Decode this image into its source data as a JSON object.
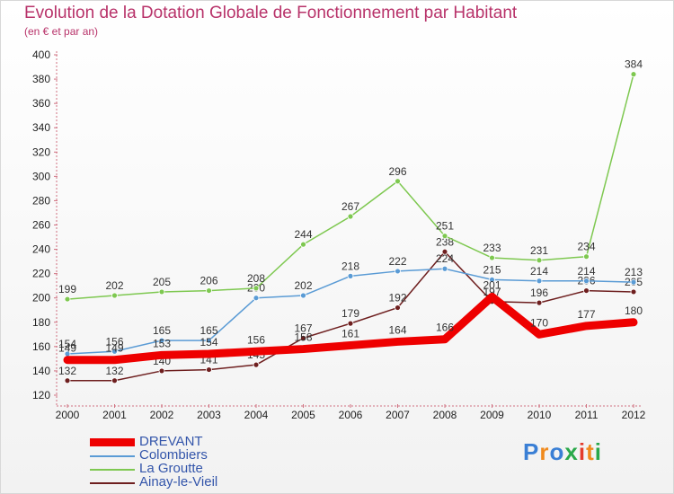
{
  "title": "Evolution de la Dotation Globale de Fonctionnement par Habitant",
  "subtitle": "(en € et par an)",
  "logo": {
    "text": "Proxiti",
    "colors": [
      "#3a7fd5",
      "#f08a1d",
      "#3a7fd5",
      "#2aa84a",
      "#e43c2c",
      "#f08a1d",
      "#2aa84a"
    ]
  },
  "chart_data": {
    "type": "line",
    "title": "Evolution de la Dotation Globale de Fonctionnement par Habitant",
    "subtitle": "(en € et par an)",
    "xlabel": "",
    "ylabel": "",
    "categories": [
      "2000",
      "2001",
      "2002",
      "2003",
      "2004",
      "2005",
      "2006",
      "2007",
      "2008",
      "2009",
      "2010",
      "2011",
      "2012"
    ],
    "yticks": [
      120,
      140,
      160,
      180,
      200,
      220,
      240,
      260,
      280,
      300,
      320,
      340,
      360,
      380,
      400
    ],
    "ylim": [
      120,
      400
    ],
    "grid": false,
    "legend_position": "bottom-left",
    "series": [
      {
        "name": "Ainay-le-Vieil",
        "color": "#6e1f1f",
        "style": "thin",
        "values": [
          132,
          132,
          140,
          141,
          145,
          167,
          179,
          192,
          238,
          197,
          196,
          206,
          205
        ],
        "labels": [
          "132",
          "132",
          "140",
          "141",
          "145",
          "167",
          "179",
          "192",
          "238",
          "197",
          "196",
          "206",
          "205"
        ]
      },
      {
        "name": "Colombiers",
        "color": "#5a9bd5",
        "style": "thin",
        "values": [
          154,
          156,
          165,
          165,
          200,
          202,
          218,
          222,
          224,
          215,
          214,
          214,
          213
        ],
        "labels": [
          "154",
          "156",
          "165",
          "165",
          "200",
          "202",
          "218",
          "222",
          "224",
          "215",
          "214",
          "214",
          "213"
        ]
      },
      {
        "name": "La Groutte",
        "color": "#7ec850",
        "style": "thin",
        "values": [
          199,
          202,
          205,
          206,
          208,
          244,
          267,
          296,
          251,
          233,
          231,
          234,
          384
        ],
        "labels": [
          "199",
          "202",
          "205",
          "206",
          "208",
          "244",
          "267",
          "296",
          "251",
          "233",
          "231",
          "234",
          "384"
        ]
      },
      {
        "name": "DREVANT",
        "color": "#ee0000",
        "style": "thick",
        "values": [
          149,
          149,
          153,
          154,
          156,
          158,
          161,
          164,
          166,
          201,
          170,
          177,
          180
        ],
        "labels": [
          "149",
          "149",
          "153",
          "154",
          "156",
          "158",
          "161",
          "164",
          "166",
          "201",
          "170",
          "177",
          "180"
        ]
      }
    ],
    "legend": [
      {
        "name": "DREVANT",
        "color": "#ee0000",
        "style": "thick"
      },
      {
        "name": "Colombiers",
        "color": "#5a9bd5",
        "style": "thin"
      },
      {
        "name": "La Groutte",
        "color": "#7ec850",
        "style": "thin"
      },
      {
        "name": "Ainay-le-Vieil",
        "color": "#6e1f1f",
        "style": "thin"
      }
    ]
  }
}
